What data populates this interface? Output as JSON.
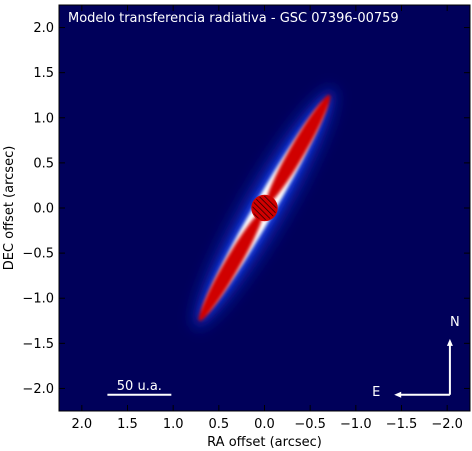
{
  "chart_data": {
    "type": "heatmap",
    "title": "Modelo transferencia radiativa - GSC 07396-00759",
    "xlabel": "RA offset (arcsec)",
    "ylabel": "DEC offset (arcsec)",
    "xlim": [
      2.25,
      -2.25
    ],
    "ylim": [
      -2.25,
      2.25
    ],
    "x_inverted": true,
    "xticks": [
      2.0,
      1.5,
      1.0,
      0.5,
      0.0,
      -0.5,
      -1.0,
      -1.5,
      -2.0
    ],
    "yticks": [
      -2.0,
      -1.5,
      -1.0,
      -0.5,
      0.0,
      0.5,
      1.0,
      1.5,
      2.0
    ],
    "xtick_labels": [
      "2.0",
      "1.5",
      "1.0",
      "0.5",
      "0.0",
      "−0.5",
      "−1.0",
      "−1.5",
      "−2.0"
    ],
    "ytick_labels": [
      "−2.0",
      "−1.5",
      "−1.0",
      "−0.5",
      "0.0",
      "0.5",
      "1.0",
      "1.5",
      "2.0"
    ],
    "colormap": [
      "#00005a",
      "#1030d0",
      "#ffffff",
      "#d00000"
    ],
    "background_color": "#00005a",
    "disk": {
      "center": [
        0.0,
        0.0
      ],
      "semi_major_arcsec": 1.45,
      "semi_minor_arcsec": 0.1,
      "position_angle_deg": 30,
      "peak_offset_arcsec": 0.75
    },
    "coronagraph_mask": {
      "center": [
        0.0,
        0.0
      ],
      "radius_arcsec": 0.14,
      "color": "#d00000",
      "hatched": true
    },
    "scale_bar": {
      "label": "50 u.a.",
      "x_from": 1.72,
      "x_to": 1.02,
      "y": -2.07
    },
    "compass": {
      "north_label": "N",
      "east_label": "E",
      "origin": [
        -2.03,
        -2.07
      ],
      "north_tip_y": -1.45,
      "east_tip_x": -1.42
    }
  }
}
